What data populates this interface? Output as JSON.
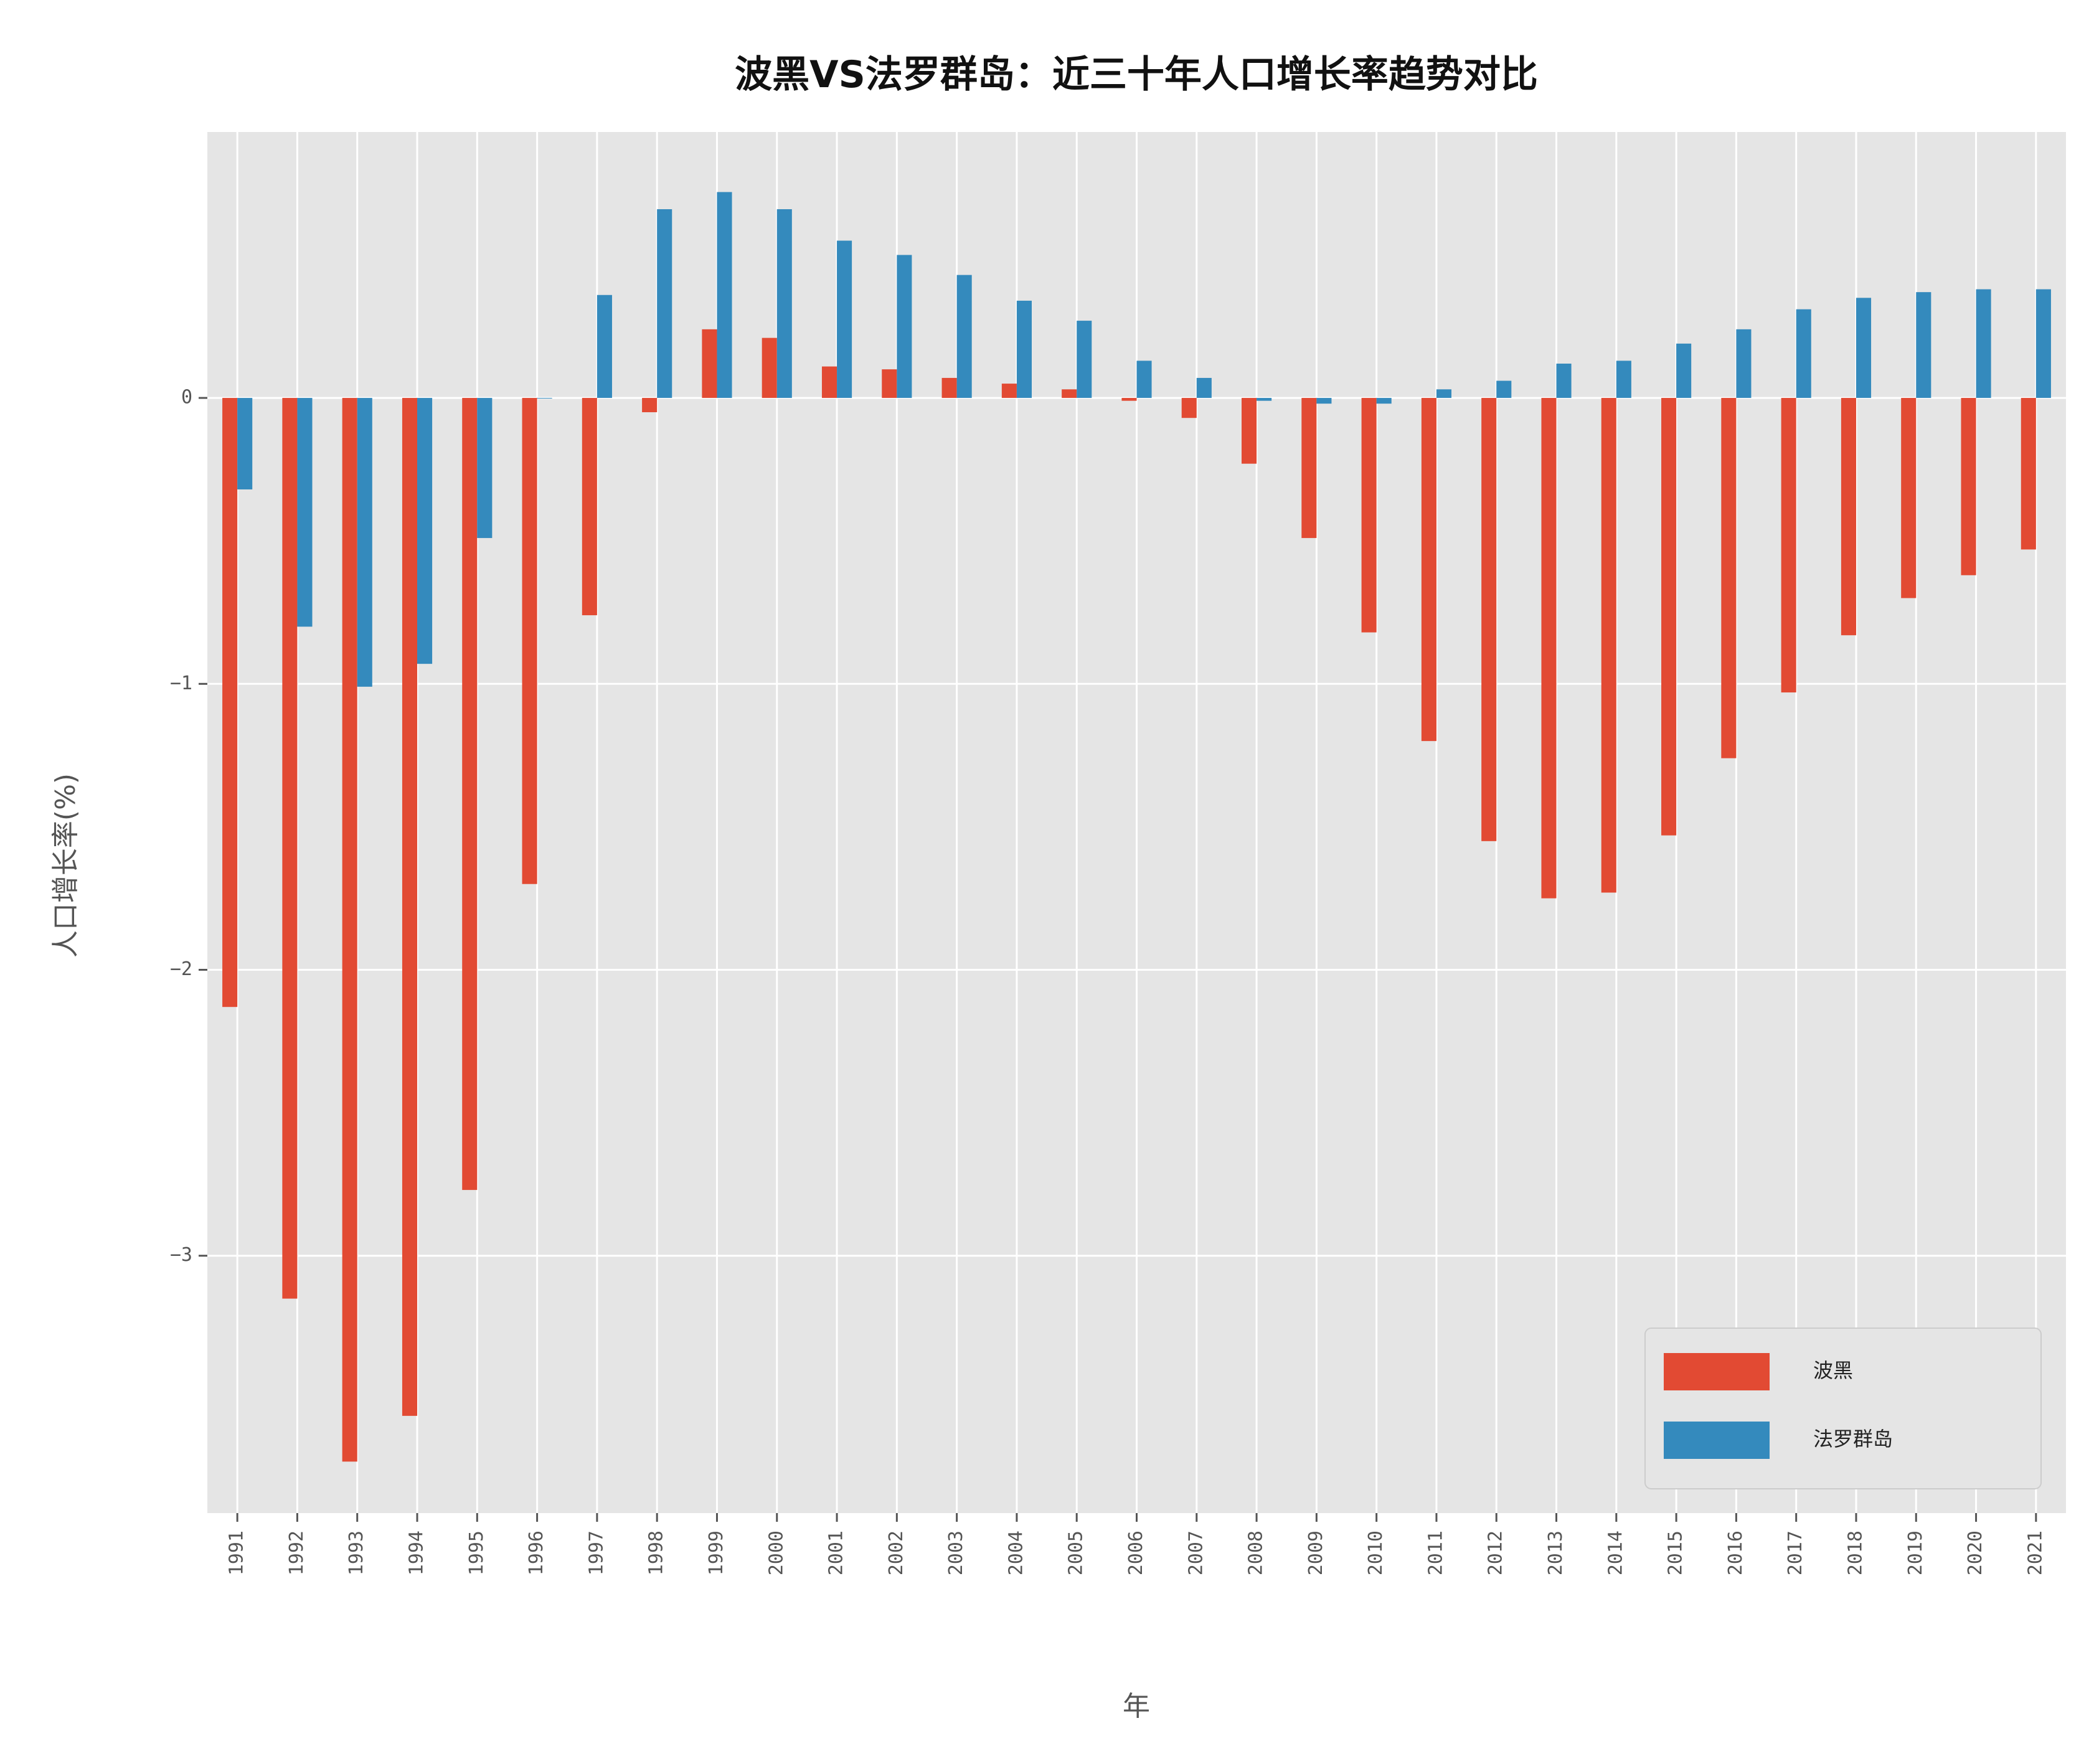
{
  "chart_data": {
    "type": "bar",
    "title": "波黑VS法罗群岛：近三十年人口增长率趋势对比",
    "xlabel": "年",
    "ylabel": "人口增长率(%)",
    "ylim": [
      -3.9,
      0.93
    ],
    "yticks": [
      0,
      -1,
      -2,
      -3
    ],
    "grid": true,
    "legend_position": "bottom-right",
    "categories": [
      "1991",
      "1992",
      "1993",
      "1994",
      "1995",
      "1996",
      "1997",
      "1998",
      "1999",
      "2000",
      "2001",
      "2002",
      "2003",
      "2004",
      "2005",
      "2006",
      "2007",
      "2008",
      "2009",
      "2010",
      "2011",
      "2012",
      "2013",
      "2014",
      "2015",
      "2016",
      "2017",
      "2018",
      "2019",
      "2020",
      "2021"
    ],
    "series": [
      {
        "name": "波黑",
        "color": "#E24A33",
        "values": [
          -2.13,
          -3.15,
          -3.72,
          -3.56,
          -2.77,
          -1.7,
          -0.76,
          -0.05,
          0.24,
          0.21,
          0.11,
          0.1,
          0.07,
          0.05,
          0.03,
          -0.01,
          -0.07,
          -0.23,
          -0.49,
          -0.82,
          -1.2,
          -1.55,
          -1.75,
          -1.73,
          -1.53,
          -1.26,
          -1.03,
          -0.83,
          -0.7,
          -0.62,
          -0.53
        ]
      },
      {
        "name": "法罗群岛",
        "color": "#348ABD",
        "values": [
          -0.32,
          -0.8,
          -1.01,
          -0.93,
          -0.49,
          0.0,
          0.36,
          0.66,
          0.72,
          0.66,
          0.55,
          0.5,
          0.43,
          0.34,
          0.27,
          0.13,
          0.07,
          -0.01,
          -0.02,
          -0.02,
          0.03,
          0.06,
          0.12,
          0.13,
          0.19,
          0.24,
          0.31,
          0.35,
          0.37,
          0.38,
          0.38
        ]
      }
    ]
  }
}
